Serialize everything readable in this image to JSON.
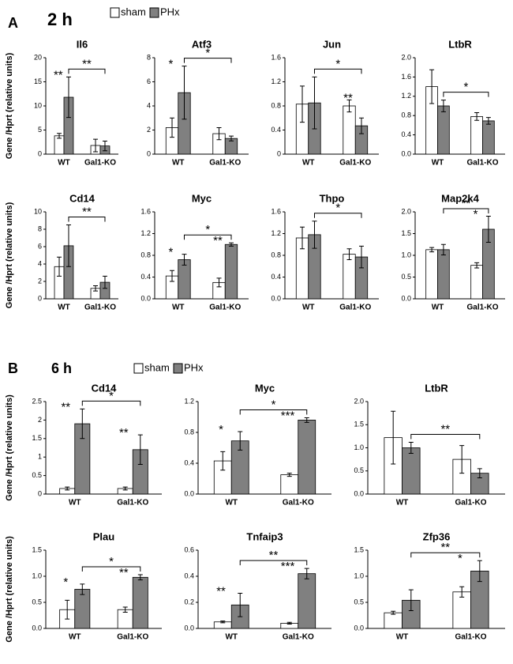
{
  "panels": [
    {
      "label": "A",
      "title": "2 h"
    },
    {
      "label": "B",
      "title": "6 h"
    }
  ],
  "chart_data": [
    {
      "type": "bar",
      "title": "Il6",
      "y_label": "Gene /Hprt (relative units)",
      "categories": [
        "WT",
        "Gal1-KO"
      ],
      "ylim": [
        0,
        20
      ],
      "yticks": [
        0,
        5,
        10,
        15,
        20
      ],
      "series": [
        {
          "name": "sham",
          "color": "#ffffff",
          "values": [
            3.8,
            1.8
          ],
          "errors": [
            0.5,
            1.3
          ]
        },
        {
          "name": "PHx",
          "color": "#808080",
          "values": [
            11.8,
            1.7
          ],
          "errors": [
            4.2,
            1.0
          ],
          "labels": [
            "**",
            null
          ]
        }
      ],
      "bracket": "**"
    },
    {
      "type": "bar",
      "title": "Atf3",
      "categories": [
        "WT",
        "Gal1-KO"
      ],
      "ylim": [
        0,
        8
      ],
      "yticks": [
        0,
        2,
        4,
        6,
        8
      ],
      "series": [
        {
          "name": "sham",
          "color": "#ffffff",
          "values": [
            2.2,
            1.7
          ],
          "errors": [
            0.8,
            0.5
          ]
        },
        {
          "name": "PHx",
          "color": "#808080",
          "values": [
            5.1,
            1.3
          ],
          "errors": [
            2.2,
            0.2
          ],
          "labels": [
            "*",
            null
          ]
        }
      ],
      "bracket": "*"
    },
    {
      "type": "bar",
      "title": "Jun",
      "categories": [
        "WT",
        "Gal1-KO"
      ],
      "ylim": [
        0,
        1.6
      ],
      "yticks": [
        0,
        0.4,
        0.8,
        1.2,
        1.6
      ],
      "series": [
        {
          "name": "sham",
          "color": "#ffffff",
          "values": [
            0.83,
            0.8
          ],
          "errors": [
            0.3,
            0.1
          ]
        },
        {
          "name": "PHx",
          "color": "#808080",
          "values": [
            0.85,
            0.47
          ],
          "errors": [
            0.43,
            0.13
          ],
          "labels": [
            null,
            "**"
          ]
        }
      ],
      "bracket": "*"
    },
    {
      "type": "bar",
      "title": "LtbR",
      "categories": [
        "WT",
        "Gal1-KO"
      ],
      "ylim": [
        0,
        2
      ],
      "yticks": [
        {
          "value": 0,
          "label": "0.0"
        },
        0.4,
        0.8,
        1.2,
        1.6,
        {
          "value": 2,
          "label": "2.0"
        }
      ],
      "series": [
        {
          "name": "sham",
          "color": "#ffffff",
          "values": [
            1.4,
            0.78
          ],
          "errors": [
            0.35,
            0.08
          ]
        },
        {
          "name": "PHx",
          "color": "#808080",
          "values": [
            1.0,
            0.69
          ],
          "errors": [
            0.12,
            0.07
          ],
          "labels": [
            null,
            null
          ]
        }
      ],
      "bracket": "*"
    },
    {
      "type": "bar",
      "title": "Cd14",
      "y_label": "Gene /Hprt (relative units)",
      "categories": [
        "WT",
        "Gal1-KO"
      ],
      "ylim": [
        0,
        10
      ],
      "yticks": [
        0,
        2,
        4,
        6,
        8,
        10
      ],
      "series": [
        {
          "name": "sham",
          "color": "#ffffff",
          "values": [
            3.7,
            1.2
          ],
          "errors": [
            1.1,
            0.3
          ]
        },
        {
          "name": "PHx",
          "color": "#808080",
          "values": [
            6.1,
            1.9
          ],
          "errors": [
            2.4,
            0.7
          ],
          "labels": [
            null,
            null
          ]
        }
      ],
      "bracket": "**"
    },
    {
      "type": "bar",
      "title": "Myc",
      "categories": [
        "WT",
        "Gal1-KO"
      ],
      "ylim": [
        0,
        1.6
      ],
      "yticks": [
        {
          "value": 0,
          "label": "0.0"
        },
        0.4,
        0.8,
        1.2,
        1.6
      ],
      "series": [
        {
          "name": "sham",
          "color": "#ffffff",
          "values": [
            0.42,
            0.3
          ],
          "errors": [
            0.1,
            0.08
          ]
        },
        {
          "name": "PHx",
          "color": "#808080",
          "values": [
            0.72,
            1.0
          ],
          "errors": [
            0.1,
            0.03
          ],
          "labels": [
            "*",
            "**"
          ]
        }
      ],
      "bracket": "*"
    },
    {
      "type": "bar",
      "title": "Thpo",
      "categories": [
        "WT",
        "Gal1-KO"
      ],
      "ylim": [
        0,
        1.6
      ],
      "yticks": [
        {
          "value": 0,
          "label": "0.0"
        },
        0.4,
        0.8,
        1.2,
        1.6
      ],
      "series": [
        {
          "name": "sham",
          "color": "#ffffff",
          "values": [
            1.12,
            0.82
          ],
          "errors": [
            0.2,
            0.1
          ]
        },
        {
          "name": "PHx",
          "color": "#808080",
          "values": [
            1.18,
            0.77
          ],
          "errors": [
            0.25,
            0.2
          ],
          "labels": [
            null,
            null
          ]
        }
      ],
      "bracket": "*"
    },
    {
      "type": "bar",
      "title": "Map2k4",
      "categories": [
        "WT",
        "Gal1-KO"
      ],
      "ylim": [
        0,
        2
      ],
      "yticks": [
        {
          "value": 0,
          "label": "0.0"
        },
        0.5,
        {
          "value": 1,
          "label": "1.0"
        },
        1.5,
        {
          "value": 2,
          "label": "2.0"
        }
      ],
      "series": [
        {
          "name": "sham",
          "color": "#ffffff",
          "values": [
            1.13,
            0.77
          ],
          "errors": [
            0.05,
            0.06
          ]
        },
        {
          "name": "PHx",
          "color": "#808080",
          "values": [
            1.13,
            1.6
          ],
          "errors": [
            0.12,
            0.3
          ],
          "labels": [
            null,
            "*"
          ]
        }
      ],
      "bracket": "**"
    },
    {
      "type": "bar",
      "title": "Cd14",
      "y_label": "Gene /Hprt (relative units)",
      "categories": [
        "WT",
        "Gal1-KO"
      ],
      "ylim": [
        0,
        2.5
      ],
      "yticks": [
        0,
        0.5,
        1,
        1.5,
        2,
        2.5
      ],
      "series": [
        {
          "name": "sham",
          "color": "#ffffff",
          "values": [
            0.15,
            0.15
          ],
          "errors": [
            0.04,
            0.04
          ]
        },
        {
          "name": "PHx",
          "color": "#808080",
          "values": [
            1.9,
            1.2
          ],
          "errors": [
            0.4,
            0.4
          ],
          "labels": [
            "**",
            "**"
          ]
        }
      ],
      "bracket": "*"
    },
    {
      "type": "bar",
      "title": "Myc",
      "categories": [
        "WT",
        "Gal1-KO"
      ],
      "ylim": [
        0,
        1.2
      ],
      "yticks": [
        {
          "value": 0,
          "label": "0.0"
        },
        0.4,
        0.8,
        1.2
      ],
      "series": [
        {
          "name": "sham",
          "color": "#ffffff",
          "values": [
            0.43,
            0.25
          ],
          "errors": [
            0.12,
            0.02
          ]
        },
        {
          "name": "PHx",
          "color": "#808080",
          "values": [
            0.69,
            0.96
          ],
          "errors": [
            0.12,
            0.03
          ],
          "labels": [
            "*",
            "***"
          ]
        }
      ],
      "bracket": "*"
    },
    {
      "type": "bar",
      "title": "LtbR",
      "categories": [
        "WT",
        "Gal1-KO"
      ],
      "ylim": [
        0,
        2
      ],
      "yticks": [
        {
          "value": 0,
          "label": "0.0"
        },
        0.5,
        {
          "value": 1,
          "label": "1.0"
        },
        1.5,
        {
          "value": 2,
          "label": "2.0"
        }
      ],
      "series": [
        {
          "name": "sham",
          "color": "#ffffff",
          "values": [
            1.22,
            0.75
          ],
          "errors": [
            0.57,
            0.3
          ]
        },
        {
          "name": "PHx",
          "color": "#808080",
          "values": [
            1.0,
            0.45
          ],
          "errors": [
            0.12,
            0.1
          ],
          "labels": [
            null,
            null
          ]
        }
      ],
      "bracket": "**"
    },
    {
      "type": "bar",
      "title": "Plau",
      "y_label": "Gene /Hprt (relative units)",
      "categories": [
        "WT",
        "Gal1-KO"
      ],
      "ylim": [
        0,
        1.5
      ],
      "yticks": [
        {
          "value": 0,
          "label": "0.0"
        },
        0.5,
        {
          "value": 1,
          "label": "1.0"
        },
        1.5
      ],
      "series": [
        {
          "name": "sham",
          "color": "#ffffff",
          "values": [
            0.36,
            0.36
          ],
          "errors": [
            0.18,
            0.05
          ]
        },
        {
          "name": "PHx",
          "color": "#808080",
          "values": [
            0.75,
            0.98
          ],
          "errors": [
            0.1,
            0.05
          ],
          "labels": [
            "*",
            "**"
          ]
        }
      ],
      "bracket": "*"
    },
    {
      "type": "bar",
      "title": "Tnfaip3",
      "categories": [
        "WT",
        "Gal1-KO"
      ],
      "ylim": [
        0,
        0.6
      ],
      "yticks": [
        {
          "value": 0,
          "label": "0.0"
        },
        0.2,
        0.4,
        0.6
      ],
      "series": [
        {
          "name": "sham",
          "color": "#ffffff",
          "values": [
            0.05,
            0.04
          ],
          "errors": [
            0.007,
            0.007
          ]
        },
        {
          "name": "PHx",
          "color": "#808080",
          "values": [
            0.18,
            0.42
          ],
          "errors": [
            0.09,
            0.04
          ],
          "labels": [
            "**",
            "***"
          ]
        }
      ],
      "bracket": "**"
    },
    {
      "type": "bar",
      "title": "Zfp36",
      "categories": [
        "WT",
        "Gal1-KO"
      ],
      "ylim": [
        0,
        1.5
      ],
      "yticks": [
        {
          "value": 0,
          "label": "0.0"
        },
        0.5,
        {
          "value": 1,
          "label": "1.0"
        },
        1.5
      ],
      "series": [
        {
          "name": "sham",
          "color": "#ffffff",
          "values": [
            0.3,
            0.7
          ],
          "errors": [
            0.03,
            0.1
          ]
        },
        {
          "name": "PHx",
          "color": "#808080",
          "values": [
            0.54,
            1.1
          ],
          "errors": [
            0.2,
            0.2
          ],
          "labels": [
            null,
            "*"
          ]
        }
      ],
      "bracket": "**"
    }
  ]
}
